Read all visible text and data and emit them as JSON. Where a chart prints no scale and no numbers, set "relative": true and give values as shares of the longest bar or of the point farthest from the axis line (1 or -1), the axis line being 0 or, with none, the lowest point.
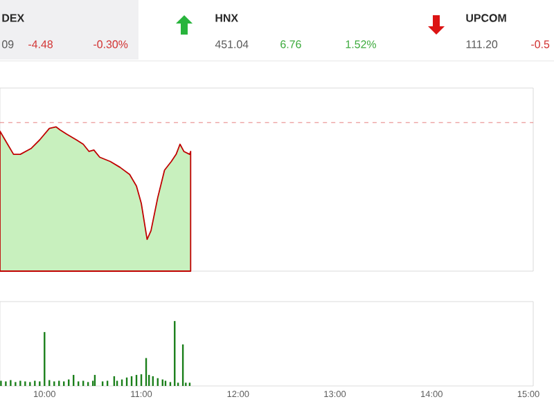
{
  "chart_data": [
    {
      "type": "other",
      "annotations": [
        "DEX",
        "09",
        "-4.48",
        "-0.30%",
        "HNX",
        "451.04",
        "6.76",
        "1.52%",
        "UPCOM",
        "111.20",
        "-0.5"
      ]
    },
    {
      "type": "area",
      "relative": true,
      "xlim": [
        9.54,
        15.05
      ],
      "tick_labels": false,
      "x": [
        9.54,
        9.61,
        9.68,
        9.75,
        9.86,
        9.95,
        10.05,
        10.12,
        10.16,
        10.23,
        10.33,
        10.4,
        10.46,
        10.51,
        10.57,
        10.68,
        10.78,
        10.88,
        10.95,
        11.0,
        11.06,
        11.1,
        11.17,
        11.24,
        11.31,
        11.36,
        11.4,
        11.44,
        11.5,
        11.51
      ],
      "series": [
        {
          "color": "#c00000",
          "values": [
            0.97,
            0.89,
            0.81,
            0.81,
            0.85,
            0.91,
            0.99,
            1.0,
            0.98,
            0.95,
            0.91,
            0.88,
            0.83,
            0.84,
            0.79,
            0.76,
            0.72,
            0.67,
            0.59,
            0.47,
            0.22,
            0.28,
            0.51,
            0.7,
            0.76,
            0.81,
            0.88,
            0.83,
            0.81,
            0.83
          ]
        }
      ],
      "ref_lines": [
        {
          "axis": "y",
          "value": 1.03,
          "color": "#e06060",
          "line_style": "dashed"
        }
      ]
    },
    {
      "type": "bar",
      "relative": true,
      "xlim": [
        9.54,
        15.05
      ],
      "tick_labels": "x",
      "xticks": [
        {
          "value": 10,
          "label": "10:00"
        },
        {
          "value": 11,
          "label": "11:00"
        },
        {
          "value": 12,
          "label": "12:00"
        },
        {
          "value": 13,
          "label": "13:00"
        },
        {
          "value": 14,
          "label": "14:00"
        },
        {
          "value": 15,
          "label": "15:00"
        }
      ],
      "x": [
        9.55,
        9.6,
        9.65,
        9.7,
        9.75,
        9.8,
        9.85,
        9.9,
        9.95,
        10.0,
        10.05,
        10.1,
        10.15,
        10.2,
        10.25,
        10.3,
        10.35,
        10.4,
        10.45,
        10.5,
        10.52,
        10.6,
        10.65,
        10.72,
        10.75,
        10.8,
        10.85,
        10.9,
        10.95,
        11.0,
        11.05,
        11.08,
        11.12,
        11.17,
        11.22,
        11.25,
        11.3,
        11.345,
        11.38,
        11.43,
        11.46,
        11.5
      ],
      "series": [
        {
          "color": "#1a7f1a",
          "values": [
            0.08,
            0.07,
            0.09,
            0.06,
            0.08,
            0.07,
            0.06,
            0.08,
            0.07,
            0.83,
            0.09,
            0.07,
            0.08,
            0.07,
            0.1,
            0.17,
            0.07,
            0.08,
            0.06,
            0.08,
            0.17,
            0.07,
            0.08,
            0.15,
            0.08,
            0.1,
            0.13,
            0.15,
            0.17,
            0.18,
            0.43,
            0.17,
            0.15,
            0.12,
            0.1,
            0.08,
            0.06,
            1.0,
            0.05,
            0.64,
            0.05,
            0.05
          ]
        }
      ]
    }
  ]
}
